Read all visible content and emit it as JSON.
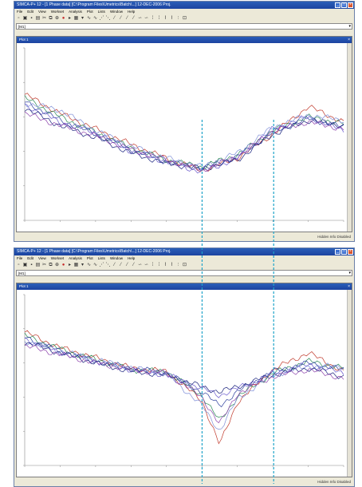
{
  "windows": [
    {
      "title": "SIMCA-P+ 12 - [1 Phase data] [C:\\Program Files\\Umetrics\\Batch\\...] 12-DEC-2006 Proj.",
      "menu": [
        "File",
        "Edit",
        "View",
        "Workset",
        "Analysis",
        "Plot",
        "Lists",
        "Window",
        "Help"
      ],
      "address_value": "[M1]",
      "plot_title": "Plot 1",
      "status_right": "Hidden Info Disabled"
    },
    {
      "title": "SIMCA-P+ 12 - [1 Phase data] [C:\\Program Files\\Umetrics\\Batch\\...] 12-DEC-2006 Proj.",
      "menu": [
        "File",
        "Edit",
        "View",
        "Workset",
        "Analysis",
        "Plot",
        "Lists",
        "Window",
        "Help"
      ],
      "address_value": "[M1]",
      "plot_title": "Plot 1",
      "status_right": "Hidden Info Disabled"
    }
  ],
  "chart_data": [
    {
      "type": "line",
      "x": [
        0,
        200,
        400,
        600,
        800,
        1000,
        1200,
        1400,
        1600,
        1800
      ],
      "ylim": [
        0,
        10
      ],
      "xlim": [
        0,
        1800
      ],
      "series": [
        {
          "color": "#c0392b",
          "values": [
            7.3,
            6.2,
            5.3,
            4.4,
            3.6,
            2.9,
            3.6,
            5.0,
            6.6,
            5.7
          ]
        },
        {
          "color": "#2e8b57",
          "values": [
            7.1,
            6.0,
            5.1,
            4.2,
            3.5,
            3.1,
            3.8,
            5.2,
            6.0,
            5.6
          ]
        },
        {
          "color": "#2c3e9e",
          "values": [
            6.9,
            5.8,
            5.0,
            4.1,
            3.4,
            3.0,
            3.7,
            5.1,
            5.9,
            5.4
          ]
        },
        {
          "color": "#6a5acd",
          "values": [
            6.7,
            5.7,
            5.1,
            4.0,
            3.4,
            2.8,
            3.6,
            5.3,
            6.0,
            5.2
          ]
        },
        {
          "color": "#7f8fd8",
          "values": [
            6.8,
            6.4,
            5.2,
            4.3,
            3.6,
            3.1,
            3.9,
            5.4,
            6.1,
            5.8
          ]
        },
        {
          "color": "#1a237e",
          "values": [
            6.5,
            5.5,
            4.8,
            3.9,
            3.3,
            3.0,
            3.5,
            5.0,
            5.8,
            5.5
          ]
        },
        {
          "color": "#8e44ad",
          "values": [
            6.2,
            5.5,
            4.9,
            4.1,
            3.5,
            2.9,
            3.7,
            5.2,
            5.7,
            5.3
          ]
        }
      ]
    },
    {
      "type": "line",
      "x": [
        0,
        200,
        400,
        600,
        800,
        1000,
        1100,
        1200,
        1400,
        1600,
        1800
      ],
      "ylim": [
        0,
        10
      ],
      "xlim": [
        0,
        1800
      ],
      "series": [
        {
          "color": "#c0392b",
          "values": [
            7.8,
            6.9,
            6.3,
            5.7,
            5.5,
            3.8,
            1.2,
            3.7,
            5.6,
            6.6,
            5.5
          ]
        },
        {
          "color": "#2e8b57",
          "values": [
            7.6,
            6.8,
            6.2,
            5.6,
            5.5,
            4.1,
            2.6,
            4.0,
            5.4,
            6.1,
            5.7
          ]
        },
        {
          "color": "#2c3e9e",
          "values": [
            7.5,
            6.7,
            6.1,
            5.7,
            5.4,
            4.3,
            3.5,
            4.3,
            5.5,
            6.0,
            5.6
          ]
        },
        {
          "color": "#6a5acd",
          "values": [
            7.4,
            6.6,
            6.1,
            5.6,
            5.3,
            4.5,
            4.1,
            4.5,
            5.4,
            5.9,
            5.4
          ]
        },
        {
          "color": "#7f8fd8",
          "values": [
            7.3,
            6.7,
            6.2,
            5.7,
            5.4,
            3.5,
            2.0,
            3.9,
            5.3,
            5.8,
            5.8
          ]
        },
        {
          "color": "#1a237e",
          "values": [
            7.2,
            6.6,
            6.0,
            5.5,
            5.3,
            4.6,
            4.3,
            4.6,
            5.3,
            5.7,
            5.2
          ]
        },
        {
          "color": "#8e44ad",
          "values": [
            7.0,
            6.5,
            6.0,
            5.6,
            5.4,
            4.0,
            2.4,
            4.2,
            5.2,
            5.6,
            5.1
          ]
        }
      ]
    }
  ],
  "guides": {
    "color": "#1fa3c9",
    "x_values": [
      1000,
      1400
    ]
  }
}
